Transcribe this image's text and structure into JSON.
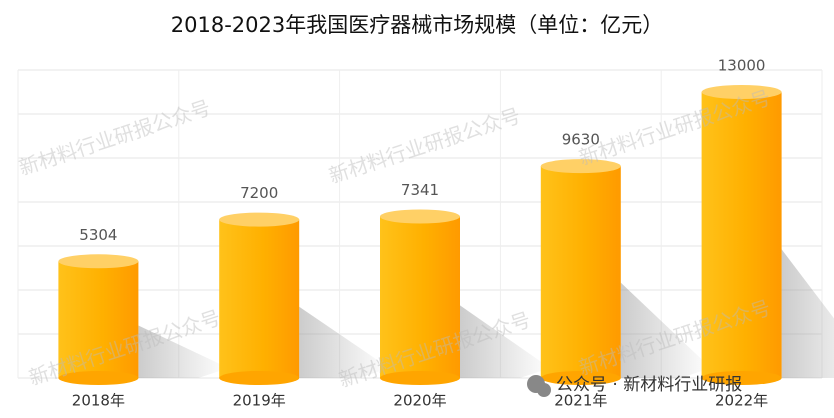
{
  "chart_data": {
    "type": "cylinder_bar",
    "title": "2018-2023年我国医疗器械市场规模（单位：亿元）",
    "categories": [
      "2018年",
      "2019年",
      "2020年",
      "2021年",
      "2022年"
    ],
    "values": [
      5304,
      7200,
      7341,
      9630,
      13000
    ],
    "color": "#ffb000",
    "ylim": [
      0,
      14000
    ],
    "yticks": [
      0,
      2000,
      4000,
      6000,
      8000,
      10000,
      12000,
      14000
    ],
    "show_ytick_labels": false,
    "grid": true,
    "watermark": "新材料行业研报公众号",
    "footer": "公众号 · 新材料行业研报"
  }
}
